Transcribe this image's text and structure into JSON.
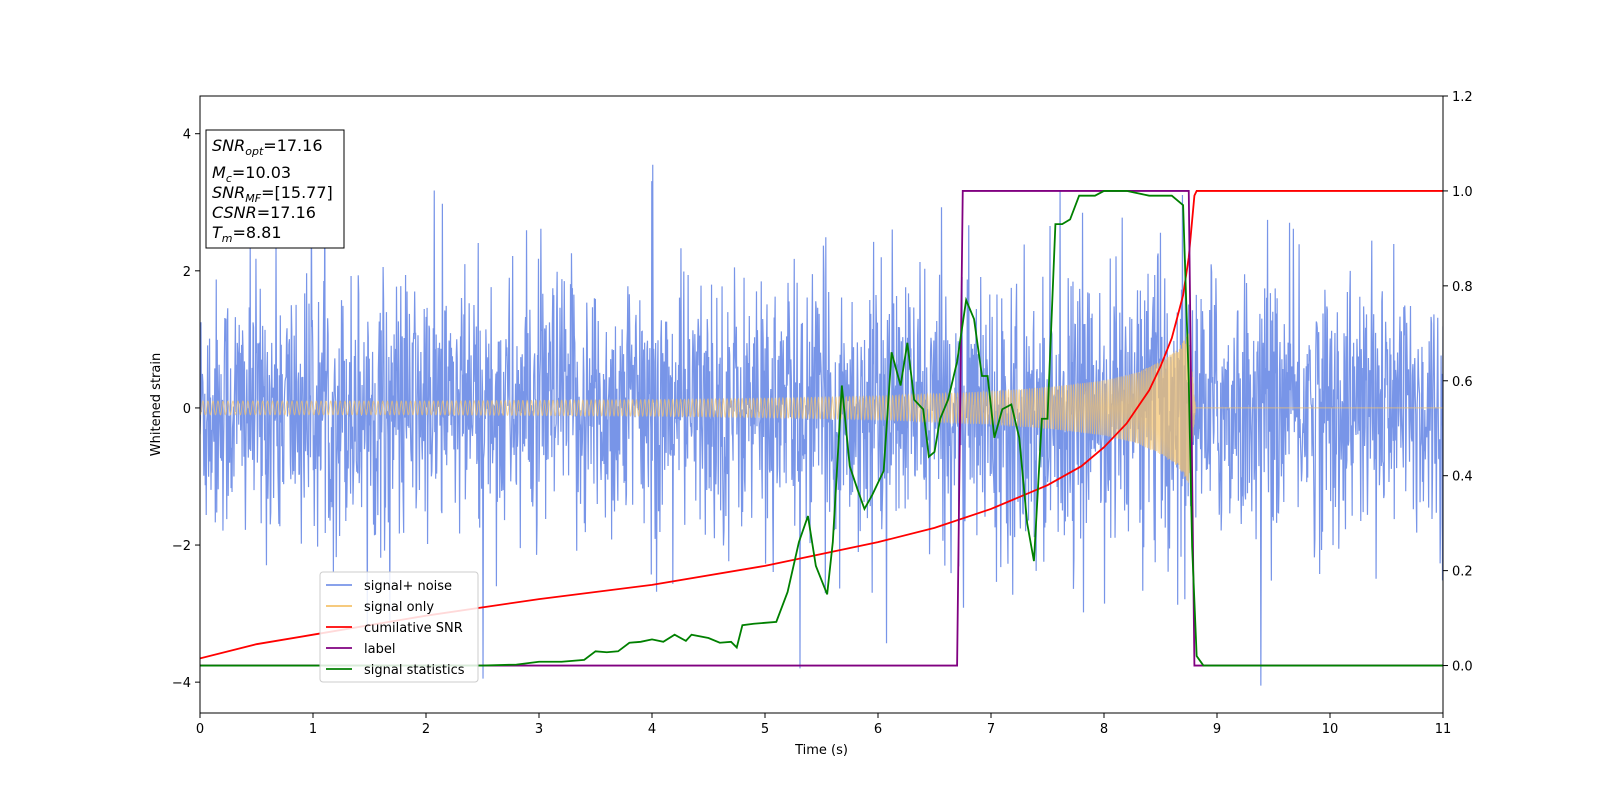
{
  "chart_data": {
    "type": "line",
    "xlabel": "Time (s)",
    "ylabel": "Whitened strain",
    "xlim": [
      0,
      11
    ],
    "ylim_left": [
      -4.45,
      4.55
    ],
    "ylim_right": [
      -0.1,
      1.2
    ],
    "x_ticks": [
      "0",
      "1",
      "2",
      "3",
      "4",
      "5",
      "6",
      "7",
      "8",
      "9",
      "10",
      "11"
    ],
    "y_ticks_left": [
      "−4",
      "−2",
      "0",
      "2",
      "4"
    ],
    "y_ticks_right": [
      "0.0",
      "0.2",
      "0.4",
      "0.6",
      "0.8",
      "1.0",
      "1.2"
    ],
    "legend_position": "lower-left",
    "info_box": {
      "snr_opt": {
        "base": "SNR",
        "sub": "opt",
        "value": "=17.16"
      },
      "mc": {
        "base": "M",
        "sub": "c",
        "value": "=10.03"
      },
      "snr_mf": {
        "base": "SNR",
        "sub": "MF",
        "value": "=[15.77]"
      },
      "csnr": {
        "base": "CSNR",
        "value": "=17.16"
      },
      "tm": {
        "base": "T",
        "sub": "m",
        "value": "=8.81"
      }
    },
    "series": [
      {
        "name": "signal+ noise",
        "axis": "left",
        "color": "#7895e8",
        "description_points": {
          "noise_amplitude_typical": 1.5,
          "noise_peak": 4.1,
          "x": [
            0,
            11
          ]
        }
      },
      {
        "name": "signal only",
        "axis": "left",
        "color": "#f5c36b",
        "envelope": {
          "x": [
            0,
            2,
            4,
            5,
            6,
            7,
            7.5,
            8,
            8.3,
            8.5,
            8.65,
            8.75,
            8.81,
            11
          ],
          "amp": [
            0.1,
            0.1,
            0.12,
            0.14,
            0.17,
            0.24,
            0.3,
            0.4,
            0.52,
            0.68,
            0.85,
            1.1,
            0,
            0
          ]
        }
      },
      {
        "name": "cumilative SNR",
        "axis": "right",
        "color": "#ff0000",
        "x": [
          0,
          0.5,
          1,
          2,
          3,
          4,
          5,
          5.5,
          6,
          6.5,
          7,
          7.5,
          7.8,
          8,
          8.2,
          8.4,
          8.5,
          8.6,
          8.7,
          8.75,
          8.8,
          8.82,
          11
        ],
        "y": [
          0.015,
          0.045,
          0.065,
          0.105,
          0.14,
          0.17,
          0.21,
          0.235,
          0.26,
          0.29,
          0.33,
          0.38,
          0.42,
          0.46,
          0.51,
          0.58,
          0.63,
          0.69,
          0.78,
          0.86,
          0.99,
          1.0,
          1.0
        ]
      },
      {
        "name": "label",
        "axis": "right",
        "color": "#800080",
        "x": [
          0,
          6.7,
          6.75,
          8.75,
          8.8,
          11
        ],
        "y": [
          0.0,
          0.0,
          1.0,
          1.0,
          0.0,
          0.0
        ]
      },
      {
        "name": "signal statistics",
        "axis": "right",
        "color": "#008000",
        "x": [
          0,
          1,
          2,
          2.5,
          2.8,
          3,
          3.2,
          3.4,
          3.5,
          3.6,
          3.7,
          3.8,
          3.9,
          4.0,
          4.1,
          4.2,
          4.3,
          4.35,
          4.5,
          4.6,
          4.7,
          4.75,
          4.8,
          4.9,
          5.0,
          5.1,
          5.2,
          5.3,
          5.38,
          5.45,
          5.55,
          5.6,
          5.68,
          5.75,
          5.82,
          5.88,
          5.95,
          6.05,
          6.12,
          6.2,
          6.26,
          6.32,
          6.4,
          6.45,
          6.5,
          6.55,
          6.62,
          6.7,
          6.78,
          6.85,
          6.92,
          6.97,
          7.03,
          7.1,
          7.18,
          7.25,
          7.32,
          7.38,
          7.45,
          7.5,
          7.57,
          7.63,
          7.7,
          7.78,
          7.85,
          7.92,
          8.0,
          8.1,
          8.2,
          8.4,
          8.6,
          8.7,
          8.75,
          8.78,
          8.82,
          8.88,
          9.0,
          11
        ],
        "y": [
          0.0,
          0.0,
          0.0,
          0.0,
          0.002,
          0.008,
          0.008,
          0.012,
          0.03,
          0.028,
          0.03,
          0.048,
          0.05,
          0.055,
          0.05,
          0.065,
          0.052,
          0.065,
          0.058,
          0.048,
          0.05,
          0.038,
          0.085,
          0.088,
          0.09,
          0.092,
          0.155,
          0.26,
          0.315,
          0.21,
          0.15,
          0.26,
          0.59,
          0.42,
          0.37,
          0.33,
          0.36,
          0.41,
          0.66,
          0.59,
          0.68,
          0.56,
          0.54,
          0.44,
          0.45,
          0.52,
          0.56,
          0.64,
          0.77,
          0.73,
          0.61,
          0.61,
          0.48,
          0.54,
          0.55,
          0.48,
          0.3,
          0.22,
          0.52,
          0.52,
          0.93,
          0.93,
          0.94,
          0.99,
          0.99,
          0.99,
          1.0,
          1.0,
          1.0,
          0.99,
          0.99,
          0.97,
          0.6,
          0.25,
          0.02,
          0.0,
          0.0,
          0.0
        ]
      }
    ]
  }
}
